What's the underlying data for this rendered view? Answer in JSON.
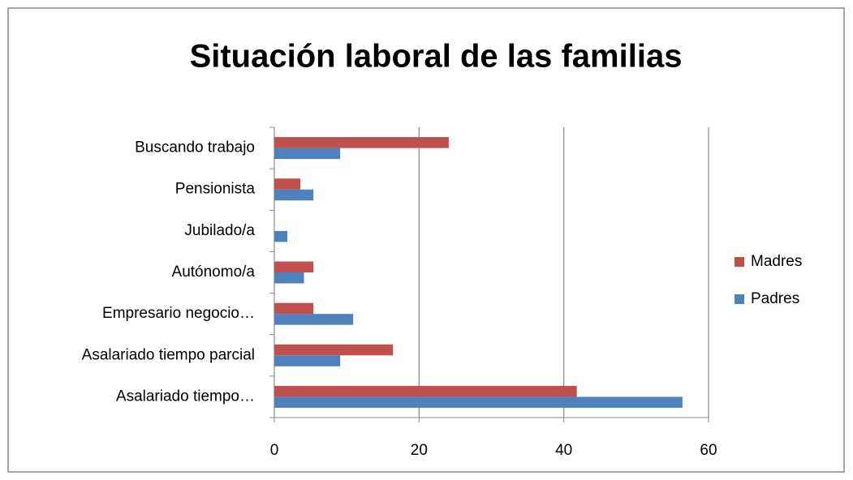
{
  "chart_data": {
    "type": "bar",
    "orientation": "horizontal",
    "title": "Situación laboral de las familias",
    "categories": [
      "Asalariado tiempo…",
      "Asalariado tiempo parcial",
      "Empresario negocio…",
      "Autónomo/a",
      "Jubilado/a",
      "Pensionista",
      "Buscando trabajo"
    ],
    "series": [
      {
        "name": "Padres",
        "color": "#4f81bd",
        "values": [
          56.4,
          9.1,
          10.9,
          4.1,
          1.8,
          5.4,
          9.1
        ]
      },
      {
        "name": "Madres",
        "color": "#c0504d",
        "values": [
          41.8,
          16.4,
          5.4,
          5.4,
          0,
          3.6,
          24.1
        ]
      }
    ],
    "xlim": [
      0,
      60
    ],
    "xticks": [
      0,
      20,
      40,
      60
    ],
    "grid": true,
    "legend": "right"
  }
}
